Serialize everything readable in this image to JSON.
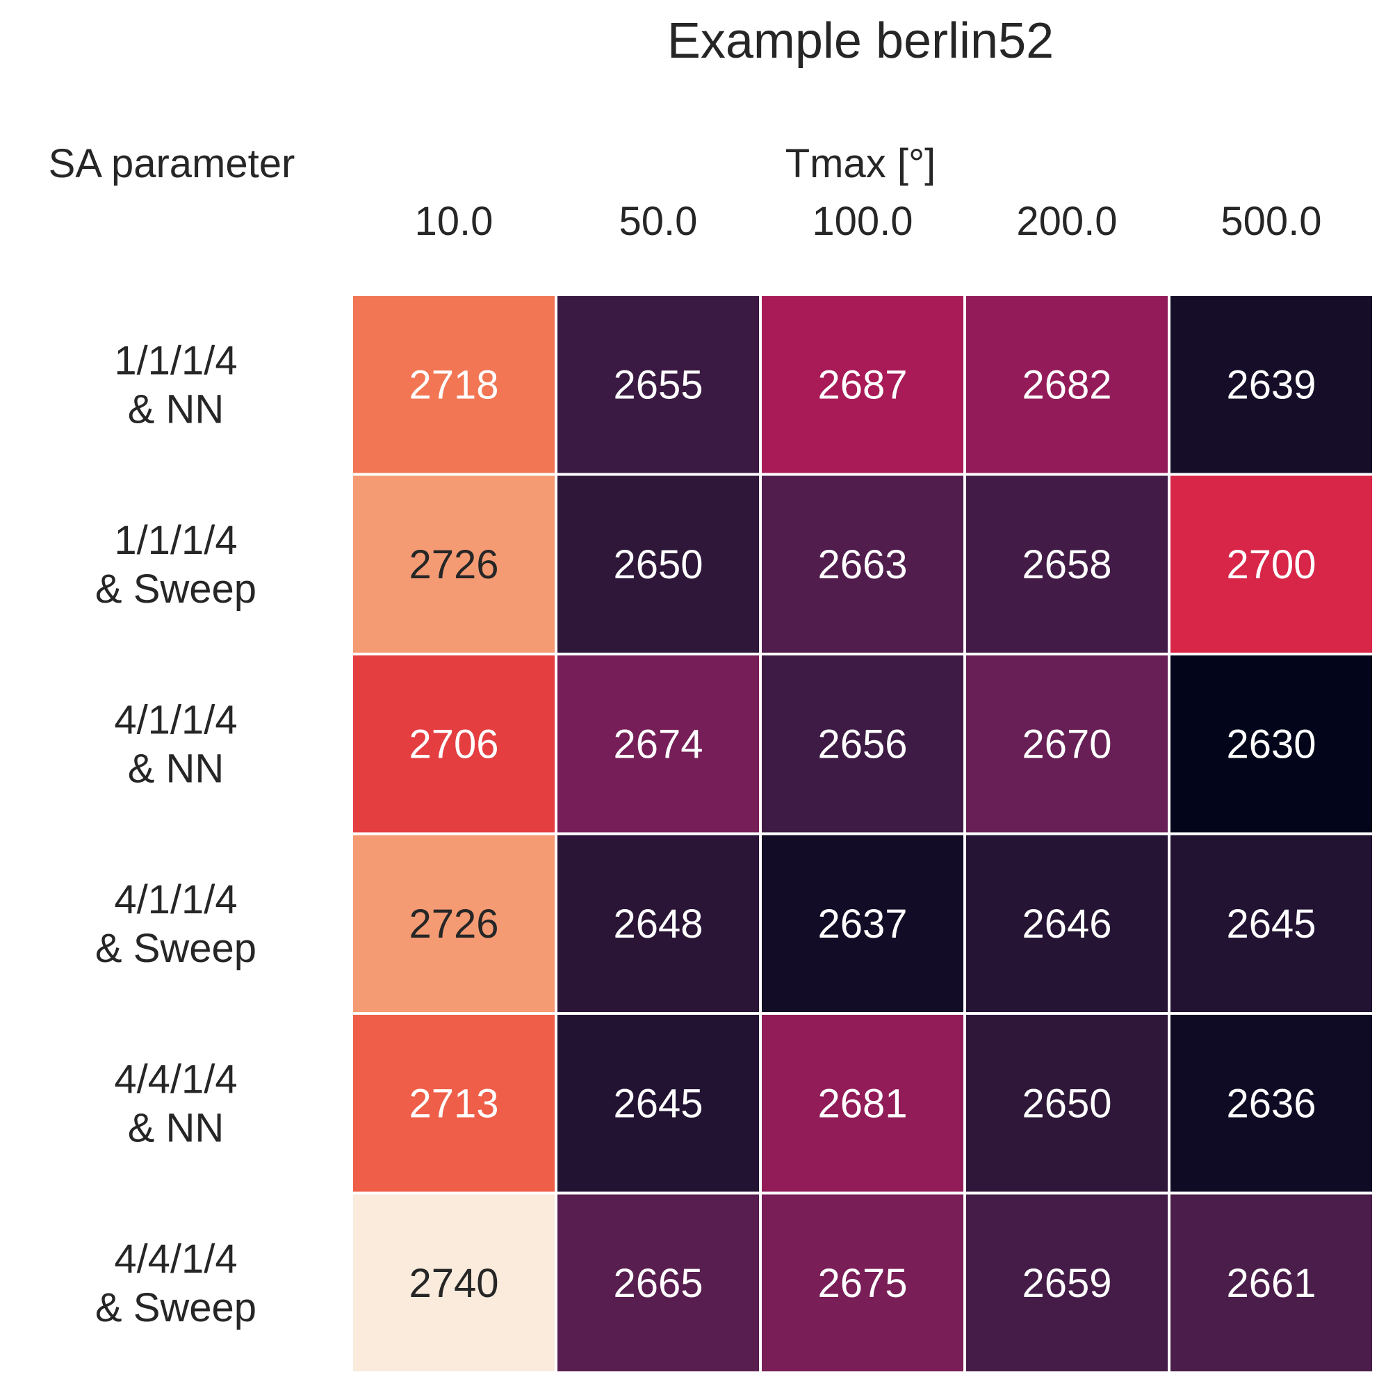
{
  "chart_data": {
    "type": "heatmap",
    "title": "Example berlin52",
    "xlabel": "Tmax [°]",
    "ylabel": "SA parameter",
    "x_ticks": [
      "10.0",
      "50.0",
      "100.0",
      "200.0",
      "500.0"
    ],
    "rows": [
      {
        "label_lines": [
          "1/1/1/4",
          "& NN"
        ],
        "values": [
          2718,
          2655,
          2687,
          2682,
          2639
        ]
      },
      {
        "label_lines": [
          "1/1/1/4",
          "& Sweep"
        ],
        "values": [
          2726,
          2650,
          2663,
          2658,
          2700
        ]
      },
      {
        "label_lines": [
          "4/1/1/4",
          "& NN"
        ],
        "values": [
          2706,
          2674,
          2656,
          2670,
          2630
        ]
      },
      {
        "label_lines": [
          "4/1/1/4",
          "& Sweep"
        ],
        "values": [
          2726,
          2648,
          2637,
          2646,
          2645
        ]
      },
      {
        "label_lines": [
          "4/4/1/4",
          "& NN"
        ],
        "values": [
          2713,
          2645,
          2681,
          2650,
          2636
        ]
      },
      {
        "label_lines": [
          "4/4/1/4",
          "& Sweep"
        ],
        "values": [
          2740,
          2665,
          2675,
          2659,
          2661
        ]
      }
    ],
    "colormap": "rocket",
    "value_range": [
      2630,
      2740
    ],
    "colorbar": false
  }
}
